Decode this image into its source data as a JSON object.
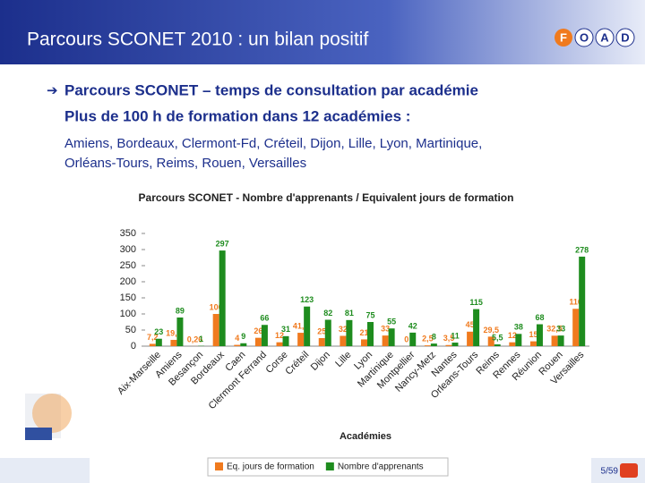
{
  "slide": {
    "title": "Parcours SCONET 2010 : un bilan positif",
    "logo": [
      "F",
      "O",
      "A",
      "D"
    ],
    "bullet": "Parcours SCONET – temps de consultation par académie",
    "subtitle": "Plus de 100 h de formation dans 12 académies :",
    "body": [
      "Amiens, Bordeaux, Clermont-Fd, Créteil, Dijon, Lille, Lyon, Martinique,",
      "Orléans-Tours, Reims, Rouen, Versailles"
    ],
    "page": "5/59"
  },
  "chart_data": {
    "type": "bar",
    "title": "Parcours SCONET - Nombre d'apprenants / Equivalent jours de formation",
    "x_label": "Académies",
    "categories": [
      "Aix-Marseille",
      "Amiens",
      "Besançon",
      "Bordeaux",
      "Caen",
      "Clermont Ferrand",
      "Corse",
      "Créteil",
      "Dijon",
      "Lille",
      "Lyon",
      "Martinique",
      "Montpellier",
      "Nancy-Metz",
      "Nantes",
      "Orleans-Tours",
      "Reims",
      "Rennes",
      "Réunion",
      "Rouen",
      "Versailles"
    ],
    "series": [
      {
        "name": "Eq. jours de formation",
        "color": "#f07a1e",
        "values": [
          7.2,
          19.5,
          0.26,
          100,
          4,
          26,
          12,
          41.5,
          25,
          32,
          21,
          33,
          0,
          2.5,
          3.5,
          45,
          29.5,
          12,
          15,
          32.5,
          116
        ],
        "value_labels": [
          "7,2",
          "19,5",
          "0,26",
          "100",
          "4",
          "26",
          "12",
          "41,5",
          "25",
          "32",
          "21",
          "33",
          "0",
          "2,5",
          "3,5",
          "45",
          "29,5",
          "12",
          "15",
          "32,5",
          "116"
        ]
      },
      {
        "name": "Nombre d'apprenants",
        "color": "#1e8c1e",
        "values": [
          23,
          89,
          1,
          297,
          9,
          66,
          31,
          123,
          82,
          81,
          75,
          55,
          42,
          8,
          11,
          115,
          5.5,
          38,
          68,
          33,
          278
        ],
        "value_labels": [
          "23",
          "89",
          "1",
          "297",
          "9",
          "66",
          "31",
          "123",
          "82",
          "81",
          "75",
          "55",
          "42",
          "8",
          "11",
          "115",
          "5,5",
          "38",
          "68",
          "33",
          "278"
        ]
      }
    ],
    "ylim": [
      0,
      350
    ],
    "yticks": [
      0,
      50,
      100,
      150,
      200,
      250,
      300,
      350
    ],
    "grid": false,
    "legend": "bottom"
  }
}
